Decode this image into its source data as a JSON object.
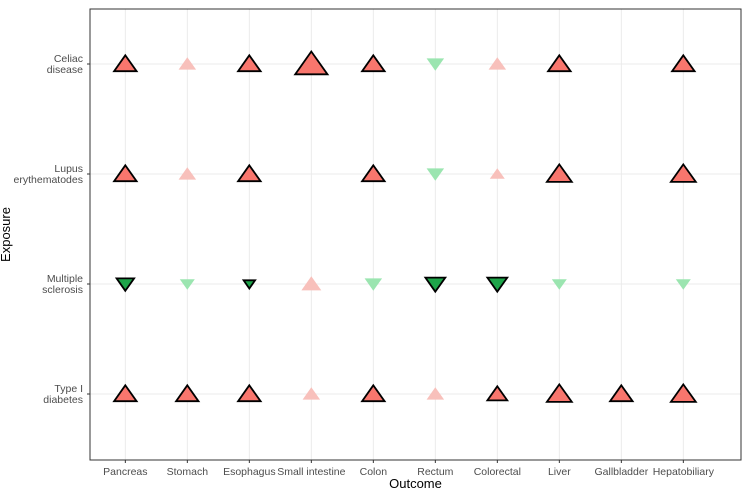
{
  "chart_data": {
    "type": "scatter",
    "title": "",
    "xlabel": "Outcome",
    "ylabel": "Exposure",
    "grid": true,
    "legend": "none",
    "x_categories": [
      "Pancreas",
      "Stomach",
      "Esophagus",
      "Small intestine",
      "Colon",
      "Rectum",
      "Colorectal",
      "Liver",
      "Gallbladder",
      "Hepatobiliary"
    ],
    "y_categories": [
      {
        "lines": [
          "Type I",
          "diabetes"
        ]
      },
      {
        "lines": [
          "Multiple",
          "sclerosis"
        ]
      },
      {
        "lines": [
          "Lupus",
          "erythematodes"
        ]
      },
      {
        "lines": [
          "Celiac",
          "disease"
        ]
      }
    ],
    "colors": {
      "increase_significant": "#f8766d",
      "increase_nonsignificant": "#f8c0bb",
      "decrease_significant": "#1ea54a",
      "decrease_nonsignificant": "#9be5b0",
      "outline": "#000000"
    },
    "points": [
      {
        "exposure": "Celiac disease",
        "outcome": "Pancreas",
        "direction": "increase",
        "significant": true,
        "size": 3
      },
      {
        "exposure": "Celiac disease",
        "outcome": "Stomach",
        "direction": "increase",
        "significant": false,
        "size": 2
      },
      {
        "exposure": "Celiac disease",
        "outcome": "Esophagus",
        "direction": "increase",
        "significant": true,
        "size": 3
      },
      {
        "exposure": "Celiac disease",
        "outcome": "Small intestine",
        "direction": "increase",
        "significant": true,
        "size": 5
      },
      {
        "exposure": "Celiac disease",
        "outcome": "Colon",
        "direction": "increase",
        "significant": true,
        "size": 3
      },
      {
        "exposure": "Celiac disease",
        "outcome": "Rectum",
        "direction": "decrease",
        "significant": false,
        "size": 2
      },
      {
        "exposure": "Celiac disease",
        "outcome": "Colorectal",
        "direction": "increase",
        "significant": false,
        "size": 2
      },
      {
        "exposure": "Celiac disease",
        "outcome": "Liver",
        "direction": "increase",
        "significant": true,
        "size": 3
      },
      {
        "exposure": "Celiac disease",
        "outcome": "Hepatobiliary",
        "direction": "increase",
        "significant": true,
        "size": 3
      },
      {
        "exposure": "Lupus erythematodes",
        "outcome": "Pancreas",
        "direction": "increase",
        "significant": true,
        "size": 3
      },
      {
        "exposure": "Lupus erythematodes",
        "outcome": "Stomach",
        "direction": "increase",
        "significant": false,
        "size": 2
      },
      {
        "exposure": "Lupus erythematodes",
        "outcome": "Esophagus",
        "direction": "increase",
        "significant": true,
        "size": 3
      },
      {
        "exposure": "Lupus erythematodes",
        "outcome": "Colon",
        "direction": "increase",
        "significant": true,
        "size": 3
      },
      {
        "exposure": "Lupus erythematodes",
        "outcome": "Rectum",
        "direction": "decrease",
        "significant": false,
        "size": 2
      },
      {
        "exposure": "Lupus erythematodes",
        "outcome": "Colorectal",
        "direction": "increase",
        "significant": false,
        "size": 1.5
      },
      {
        "exposure": "Lupus erythematodes",
        "outcome": "Liver",
        "direction": "increase",
        "significant": true,
        "size": 3.5
      },
      {
        "exposure": "Lupus erythematodes",
        "outcome": "Hepatobiliary",
        "direction": "increase",
        "significant": true,
        "size": 3.5
      },
      {
        "exposure": "Multiple sclerosis",
        "outcome": "Pancreas",
        "direction": "decrease",
        "significant": true,
        "size": 2
      },
      {
        "exposure": "Multiple sclerosis",
        "outcome": "Stomach",
        "direction": "decrease",
        "significant": false,
        "size": 1.5
      },
      {
        "exposure": "Multiple sclerosis",
        "outcome": "Esophagus",
        "direction": "decrease",
        "significant": true,
        "size": 0.8
      },
      {
        "exposure": "Multiple sclerosis",
        "outcome": "Small intestine",
        "direction": "increase",
        "significant": false,
        "size": 2.5
      },
      {
        "exposure": "Multiple sclerosis",
        "outcome": "Colon",
        "direction": "decrease",
        "significant": false,
        "size": 2
      },
      {
        "exposure": "Multiple sclerosis",
        "outcome": "Rectum",
        "direction": "decrease",
        "significant": true,
        "size": 2.5
      },
      {
        "exposure": "Multiple sclerosis",
        "outcome": "Colorectal",
        "direction": "decrease",
        "significant": true,
        "size": 2.5
      },
      {
        "exposure": "Multiple sclerosis",
        "outcome": "Liver",
        "direction": "decrease",
        "significant": false,
        "size": 1.5
      },
      {
        "exposure": "Multiple sclerosis",
        "outcome": "Hepatobiliary",
        "direction": "decrease",
        "significant": false,
        "size": 1.5
      },
      {
        "exposure": "Type I diabetes",
        "outcome": "Pancreas",
        "direction": "increase",
        "significant": true,
        "size": 3
      },
      {
        "exposure": "Type I diabetes",
        "outcome": "Stomach",
        "direction": "increase",
        "significant": true,
        "size": 3
      },
      {
        "exposure": "Type I diabetes",
        "outcome": "Esophagus",
        "direction": "increase",
        "significant": true,
        "size": 3
      },
      {
        "exposure": "Type I diabetes",
        "outcome": "Small intestine",
        "direction": "increase",
        "significant": false,
        "size": 2
      },
      {
        "exposure": "Type I diabetes",
        "outcome": "Colon",
        "direction": "increase",
        "significant": true,
        "size": 3
      },
      {
        "exposure": "Type I diabetes",
        "outcome": "Rectum",
        "direction": "increase",
        "significant": false,
        "size": 2
      },
      {
        "exposure": "Type I diabetes",
        "outcome": "Colorectal",
        "direction": "increase",
        "significant": true,
        "size": 2.5
      },
      {
        "exposure": "Type I diabetes",
        "outcome": "Liver",
        "direction": "increase",
        "significant": true,
        "size": 3.5
      },
      {
        "exposure": "Type I diabetes",
        "outcome": "Gallbladder",
        "direction": "increase",
        "significant": true,
        "size": 3
      },
      {
        "exposure": "Type I diabetes",
        "outcome": "Hepatobiliary",
        "direction": "increase",
        "significant": true,
        "size": 3.5
      }
    ]
  }
}
